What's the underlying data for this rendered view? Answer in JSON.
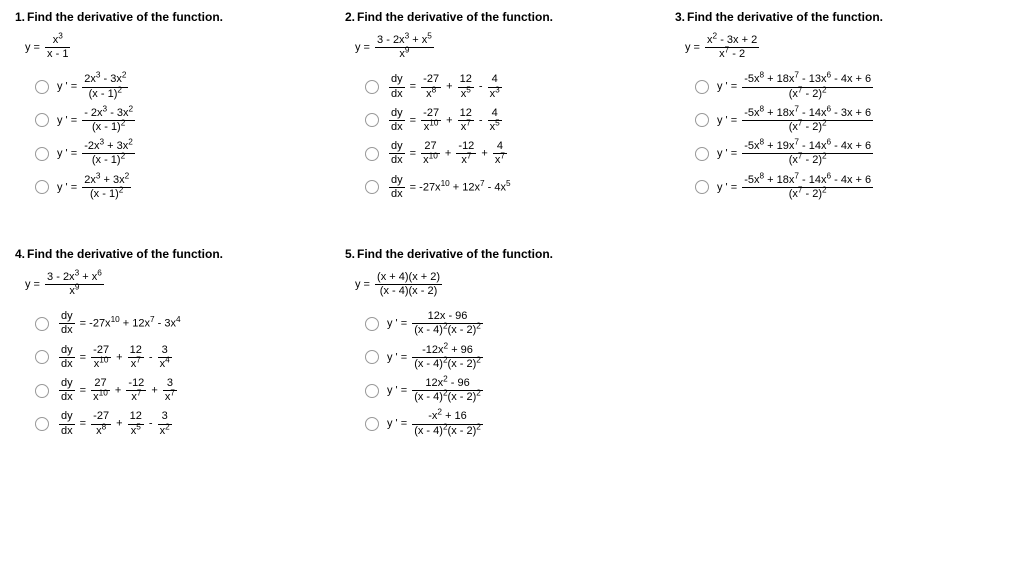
{
  "problems": [
    {
      "num": "1.",
      "title": "Find the derivative of the function.",
      "func_lhs": "y =",
      "func_num": "x<sup>3</sup>",
      "func_den": "x - 1",
      "choices": [
        {
          "lhs": "y ' =",
          "num": "2x<sup>3</sup> - 3x<sup>2</sup>",
          "den": "(x - 1)<sup>2</sup>"
        },
        {
          "lhs": "y ' =",
          "num": "- 2x<sup>3</sup> - 3x<sup>2</sup>",
          "den": "(x - 1)<sup>2</sup>"
        },
        {
          "lhs": "y ' =",
          "num": "-2x<sup>3</sup> + 3x<sup>2</sup>",
          "den": "(x - 1)<sup>2</sup>"
        },
        {
          "lhs": "y ' =",
          "num": "2x<sup>3</sup> + 3x<sup>2</sup>",
          "den": "(x - 1)<sup>2</sup>"
        }
      ]
    },
    {
      "num": "2.",
      "title": "Find the derivative of the function.",
      "func_lhs": "y =",
      "func_num": "3 - 2x<sup>3</sup> + x<sup>5</sup>",
      "func_den": "x<sup>9</sup>",
      "choices_multi": [
        [
          {
            "l": "dy",
            "ld": "dx"
          },
          {
            "t": "="
          },
          {
            "l": "-27",
            "ld": "x<sup>8</sup>"
          },
          {
            "t": "+"
          },
          {
            "l": "12",
            "ld": "x<sup>5</sup>"
          },
          {
            "t": "-"
          },
          {
            "l": "4",
            "ld": "x<sup>3</sup>"
          }
        ],
        [
          {
            "l": "dy",
            "ld": "dx"
          },
          {
            "t": "="
          },
          {
            "l": "-27",
            "ld": "x<sup>10</sup>"
          },
          {
            "t": "+"
          },
          {
            "l": "12",
            "ld": "x<sup>7</sup>"
          },
          {
            "t": "-"
          },
          {
            "l": "4",
            "ld": "x<sup>5</sup>"
          }
        ],
        [
          {
            "l": "dy",
            "ld": "dx"
          },
          {
            "t": "="
          },
          {
            "l": "27",
            "ld": "x<sup>10</sup>"
          },
          {
            "t": "+"
          },
          {
            "l": "-12",
            "ld": "x<sup>7</sup>"
          },
          {
            "t": "+"
          },
          {
            "l": "4",
            "ld": "x<sup>7</sup>"
          }
        ],
        [
          {
            "l": "dy",
            "ld": "dx"
          },
          {
            "t": "= -27x<sup>10</sup> + 12x<sup>7</sup> - 4x<sup>5</sup>"
          }
        ]
      ]
    },
    {
      "num": "3.",
      "title": "Find the derivative of the function.",
      "func_lhs": "y =",
      "func_num": "x<sup>2</sup> - 3x + 2",
      "func_den": "x<sup>7</sup> - 2",
      "choices": [
        {
          "lhs": "y ' =",
          "num": "-5x<sup>8</sup> + 18x<sup>7</sup> - 13x<sup>6</sup> - 4x + 6",
          "den": "(x<sup>7</sup> - 2)<sup>2</sup>"
        },
        {
          "lhs": "y ' =",
          "num": "-5x<sup>8</sup> + 18x<sup>7</sup> - 14x<sup>6</sup> - 3x + 6",
          "den": "(x<sup>7</sup> - 2)<sup>2</sup>"
        },
        {
          "lhs": "y ' =",
          "num": "-5x<sup>8</sup> + 19x<sup>7</sup> - 14x<sup>6</sup> - 4x + 6",
          "den": "(x<sup>7</sup> - 2)<sup>2</sup>"
        },
        {
          "lhs": "y ' =",
          "num": "-5x<sup>8</sup> + 18x<sup>7</sup> - 14x<sup>6</sup> - 4x + 6",
          "den": "(x<sup>7</sup> - 2)<sup>2</sup>"
        }
      ]
    },
    {
      "num": "4.",
      "title": "Find the derivative of the function.",
      "func_lhs": "y =",
      "func_num": "3 - 2x<sup>3</sup> + x<sup>6</sup>",
      "func_den": "x<sup>9</sup>",
      "choices_multi": [
        [
          {
            "l": "dy",
            "ld": "dx"
          },
          {
            "t": "= -27x<sup>10</sup> + 12x<sup>7</sup> - 3x<sup>4</sup>"
          }
        ],
        [
          {
            "l": "dy",
            "ld": "dx"
          },
          {
            "t": "="
          },
          {
            "l": "-27",
            "ld": "x<sup>10</sup>"
          },
          {
            "t": "+"
          },
          {
            "l": "12",
            "ld": "x<sup>7</sup>"
          },
          {
            "t": "-"
          },
          {
            "l": "3",
            "ld": "x<sup>4</sup>"
          }
        ],
        [
          {
            "l": "dy",
            "ld": "dx"
          },
          {
            "t": "="
          },
          {
            "l": "27",
            "ld": "x<sup>10</sup>"
          },
          {
            "t": "+"
          },
          {
            "l": "-12",
            "ld": "x<sup>7</sup>"
          },
          {
            "t": "+"
          },
          {
            "l": "3",
            "ld": "x<sup>7</sup>"
          }
        ],
        [
          {
            "l": "dy",
            "ld": "dx"
          },
          {
            "t": "="
          },
          {
            "l": "-27",
            "ld": "x<sup>8</sup>"
          },
          {
            "t": "+"
          },
          {
            "l": "12",
            "ld": "x<sup>5</sup>"
          },
          {
            "t": "-"
          },
          {
            "l": "3",
            "ld": "x<sup>2</sup>"
          }
        ]
      ]
    },
    {
      "num": "5.",
      "title": "Find the derivative of the function.",
      "func_lhs": "y =",
      "func_num": "(x + 4)(x + 2)",
      "func_den": "(x - 4)(x - 2)",
      "choices": [
        {
          "lhs": "y ' =",
          "num": "12x - 96",
          "den": "(x - 4)<sup>2</sup>(x - 2)<sup>2</sup>"
        },
        {
          "lhs": "y ' =",
          "num": "-12x<sup>2</sup> + 96",
          "den": "(x - 4)<sup>2</sup>(x - 2)<sup>2</sup>"
        },
        {
          "lhs": "y ' =",
          "num": "12x<sup>2</sup> - 96",
          "den": "(x - 4)<sup>2</sup>(x - 2)<sup>2</sup>"
        },
        {
          "lhs": "y ' =",
          "num": "-x<sup>2</sup> + 16",
          "den": "(x - 4)<sup>2</sup>(x - 2)<sup>2</sup>"
        }
      ]
    }
  ]
}
